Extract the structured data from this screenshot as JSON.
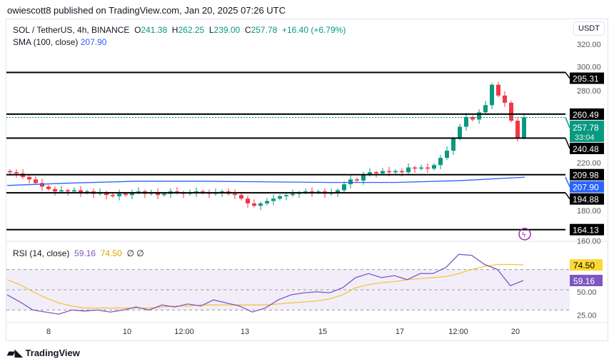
{
  "header": {
    "published": "owiescott8 published on TradingView.com, Jan 20, 2025 07:26 UTC"
  },
  "legend": {
    "symbol": "SOL / TetherUS, 4h, BINANCE",
    "o_label": "O",
    "o": "241.38",
    "h_label": "H",
    "h": "262.25",
    "l_label": "L",
    "l": "239.00",
    "c_label": "C",
    "c": "257.78",
    "change": "+16.40 (+6.79%)",
    "sma_label": "SMA (100, close)",
    "sma": "207.90"
  },
  "currency_button": "USDT",
  "price_axis": {
    "ticks": [
      "320.00",
      "300.00",
      "280.00",
      "220.00",
      "180.00",
      "160.00"
    ],
    "tick_values": [
      320,
      300,
      280,
      220,
      180,
      160
    ]
  },
  "levels": [
    {
      "label": "295.31",
      "value": 295.31
    },
    {
      "label": "260.49",
      "value": 260.49
    },
    {
      "label": "240.48",
      "value": 240.48
    },
    {
      "label": "209.98",
      "value": 209.98
    },
    {
      "label": "194.88",
      "value": 194.88
    },
    {
      "label": "164.13",
      "value": 164.13
    }
  ],
  "last_price": {
    "label": "257.78",
    "countdown": "33:04",
    "value": 257.78,
    "color": "#089981"
  },
  "sma_badge": {
    "label": "207.90",
    "value": 207.9,
    "color": "#2962ff"
  },
  "colors": {
    "up": "#089981",
    "down": "#f23645",
    "sma": "#2962ff",
    "rsi": "#7e57c2",
    "rsi_ma": "#f5c542"
  },
  "closes": [
    212,
    211,
    208,
    206,
    203,
    200,
    198,
    196,
    197,
    196,
    197,
    195,
    196,
    194,
    195,
    193,
    192,
    194,
    193,
    195,
    196,
    194,
    195,
    193,
    194,
    196,
    195,
    194,
    195,
    196,
    195,
    194,
    195,
    196,
    194,
    193,
    190,
    186,
    184,
    186,
    188,
    190,
    192,
    193,
    194,
    195,
    196,
    195,
    196,
    194,
    195,
    197,
    202,
    206,
    205,
    210,
    212,
    211,
    213,
    212,
    213,
    212,
    216,
    215,
    216,
    215,
    218,
    224,
    230,
    240,
    250,
    258,
    256,
    262,
    268,
    285,
    276,
    270,
    255,
    241,
    257.78
  ],
  "sma_values": [
    201,
    203,
    204.5,
    204.5,
    204,
    203.5,
    203.5,
    205,
    207.9
  ],
  "rsi": {
    "legend_label": "RSI (14, close)",
    "value": "59.16",
    "ma_value": "74.50",
    "extra": "∅ ∅",
    "ticks": [
      "50.00",
      "25.00"
    ],
    "badge_rsi": "59.16",
    "badge_ma": "74.50",
    "values": [
      45,
      38,
      30,
      28,
      26,
      30,
      29,
      30,
      28,
      30,
      33,
      30,
      35,
      33,
      36,
      34,
      40,
      37,
      34,
      28,
      32,
      40,
      45,
      47,
      48,
      47,
      52,
      62,
      66,
      62,
      64,
      60,
      66,
      66,
      72,
      85,
      84,
      75,
      70,
      54,
      59.16
    ],
    "ma_values": [
      60,
      55,
      48,
      42,
      37,
      34,
      32,
      32,
      32,
      32,
      32,
      32,
      33,
      34,
      34,
      35,
      35,
      35,
      35,
      35,
      35,
      36,
      37,
      38,
      39,
      41,
      45,
      52,
      55,
      57,
      58,
      60,
      61,
      62,
      63,
      66,
      70,
      73,
      75,
      75,
      74.5
    ]
  },
  "time_axis": [
    "8",
    "10",
    "12:00",
    "13",
    "15",
    "17",
    "12:00",
    "20"
  ],
  "brand": "TradingView"
}
